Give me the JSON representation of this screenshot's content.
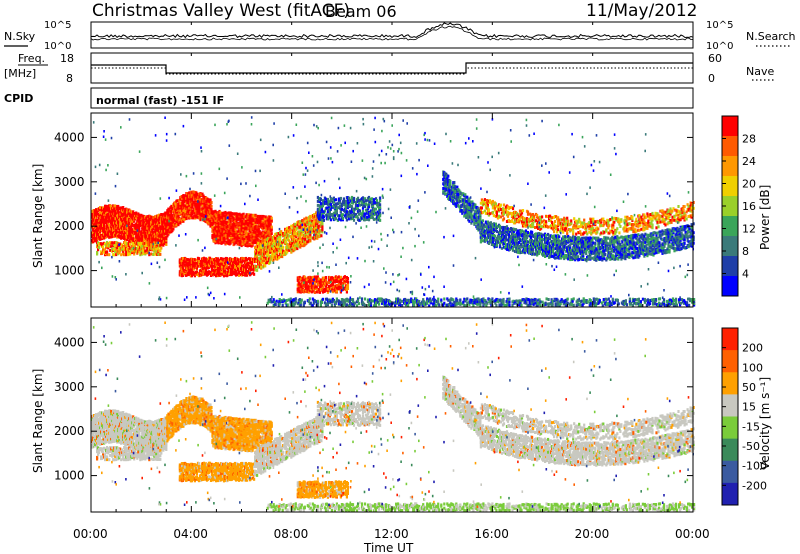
{
  "header": {
    "station": "Christmas Valley West (fitACF)",
    "beam": "Beam 06",
    "date": "11/May/2012"
  },
  "top_panels": {
    "nsky_label": "N.Sky",
    "nsearch_label": "N.Search",
    "noise_ticks_left": [
      "10^5",
      "10^0"
    ],
    "noise_ticks_right": [
      "10^5",
      "10^0"
    ],
    "freq_label_line1": "Freq.",
    "freq_label_line2": "[MHz]",
    "freq_ticks": [
      "18",
      "8"
    ],
    "nave_label": "Nave",
    "nave_ticks": [
      "60",
      "0"
    ],
    "cpid_label": "CPID",
    "cpid_text": "normal (fast) -151 IF"
  },
  "chart_data": [
    {
      "type": "heatmap",
      "name": "power",
      "ylabel": "Slant Range [km]",
      "yticks": [
        "4000",
        "3000",
        "2000",
        "1000"
      ],
      "ylim": [
        180,
        4550
      ],
      "colorbar_label": "Power [dB]",
      "colorbar_ticks": [
        "28",
        "24",
        "20",
        "16",
        "12",
        "8",
        "4"
      ],
      "colors": [
        "#0000ff",
        "#1f3fa8",
        "#3a7a7a",
        "#3aa55a",
        "#9ad02a",
        "#f0d000",
        "#ff9800",
        "#ff5a00",
        "#ff0000"
      ]
    },
    {
      "type": "heatmap",
      "name": "velocity",
      "ylabel": "Slant Range [km]",
      "yticks": [
        "4000",
        "3000",
        "2000",
        "1000"
      ],
      "ylim": [
        180,
        4550
      ],
      "colorbar_label": "Velocity [m s⁻¹]",
      "colorbar_ticks": [
        "200",
        "100",
        "50",
        "15",
        "-15",
        "-50",
        "-100",
        "-200"
      ],
      "colors": [
        "#2020b0",
        "#3a5aa0",
        "#3a8a5a",
        "#7acc3a",
        "#c8c8c0",
        "#ffa000",
        "#ff6000",
        "#ff2000"
      ]
    }
  ],
  "xaxis": {
    "ticks": [
      "00:00",
      "04:00",
      "08:00",
      "12:00",
      "16:00",
      "20:00",
      "00:00"
    ],
    "label": "Time UT"
  }
}
